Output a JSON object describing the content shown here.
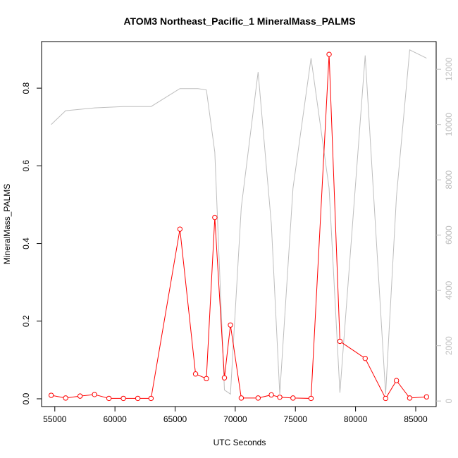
{
  "chart_data": {
    "type": "line",
    "title": "ATOM3 Northeast_Pacific_1 MineralMass_PALMS",
    "xlabel": "UTC Seconds",
    "ylabel": "MineralMass_PALMS",
    "y2label": "",
    "xlim": [
      53900,
      86700
    ],
    "ylim": [
      -0.02,
      0.92
    ],
    "y2lim": [
      -200,
      13000
    ],
    "x_ticks": [
      55000,
      60000,
      65000,
      70000,
      75000,
      80000,
      85000
    ],
    "y_ticks": [
      0.0,
      0.2,
      0.4,
      0.6,
      0.8
    ],
    "y2_ticks": [
      0,
      2000,
      4000,
      6000,
      8000,
      10000,
      12000
    ],
    "x_tick_labels": [
      "55000",
      "60000",
      "65000",
      "70000",
      "75000",
      "80000",
      "85000"
    ],
    "y_tick_labels": [
      "0.0",
      "0.2",
      "0.4",
      "0.6",
      "0.8"
    ],
    "y2_tick_labels": [
      "0",
      "2000",
      "4000",
      "6000",
      "8000",
      "10000",
      "12000"
    ],
    "grid": false,
    "series": [
      {
        "axis": "left",
        "color": "#ff0000",
        "marker": "open-circle",
        "x": [
          54700,
          55900,
          57100,
          58300,
          59500,
          60700,
          61900,
          63000,
          65400,
          66700,
          67600,
          68300,
          69100,
          69600,
          70500,
          71900,
          73000,
          73700,
          74800,
          76300,
          77800,
          78700,
          80800,
          82500,
          83400,
          84500,
          85900
        ],
        "y": [
          0.009,
          0.002,
          0.007,
          0.011,
          0.001,
          0.001,
          0.001,
          0.001,
          0.437,
          0.064,
          0.052,
          0.467,
          0.054,
          0.19,
          0.002,
          0.002,
          0.01,
          0.004,
          0.002,
          0.001,
          0.887,
          0.148,
          0.104,
          0.001,
          0.047,
          0.002,
          0.005
        ]
      },
      {
        "axis": "right",
        "color": "#bebebe",
        "marker": "none",
        "x": [
          54700,
          55900,
          58300,
          60700,
          63000,
          65400,
          66900,
          67600,
          68300,
          69100,
          69600,
          70500,
          71900,
          73000,
          73700,
          74800,
          76300,
          77800,
          78700,
          80800,
          82500,
          83400,
          84500,
          85900
        ],
        "y": [
          10000,
          10500,
          10600,
          10650,
          10650,
          11300,
          11300,
          11250,
          9000,
          400,
          250,
          7000,
          11900,
          6400,
          250,
          7700,
          12400,
          7700,
          300,
          12500,
          250,
          7400,
          12700,
          12400
        ]
      }
    ]
  }
}
